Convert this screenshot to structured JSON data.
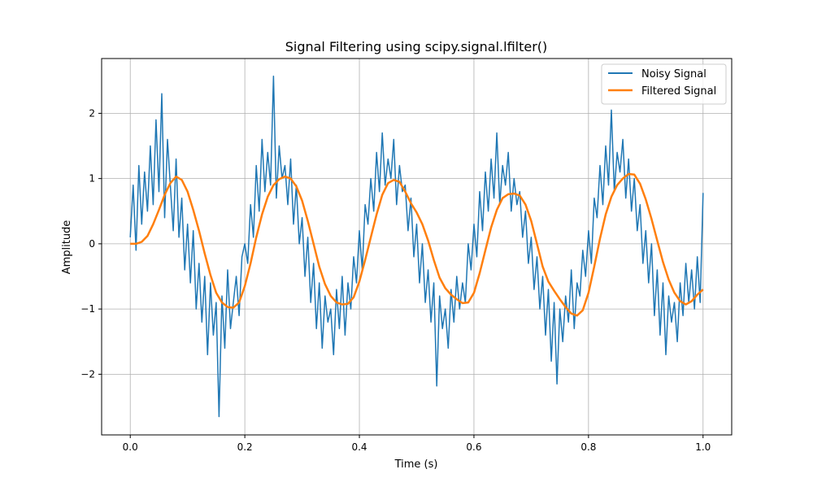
{
  "chart_data": {
    "type": "line",
    "title": "Signal Filtering using scipy.signal.lfilter()",
    "xlabel": "Time (s)",
    "ylabel": "Amplitude",
    "xlim": [
      -0.05,
      1.05
    ],
    "ylim": [
      -2.93,
      2.84
    ],
    "xticks": [
      0.0,
      0.2,
      0.4,
      0.6,
      0.8,
      1.0
    ],
    "xtick_labels": [
      "0.0",
      "0.2",
      "0.4",
      "0.6",
      "0.8",
      "1.0"
    ],
    "yticks": [
      -2,
      -1,
      0,
      1,
      2
    ],
    "ytick_labels": [
      "−2",
      "−1",
      "0",
      "1",
      "2"
    ],
    "grid": true,
    "legend_position": "top-right",
    "series": [
      {
        "name": "Noisy Signal",
        "color": "#1f77b4",
        "x_start": 0.0,
        "x_step": 0.005,
        "values": [
          0.1,
          0.9,
          -0.1,
          1.2,
          0.3,
          1.1,
          0.5,
          1.5,
          0.6,
          1.9,
          0.8,
          2.3,
          0.4,
          1.6,
          0.9,
          0.2,
          1.3,
          0.1,
          0.7,
          -0.4,
          0.3,
          -0.6,
          0.2,
          -1.0,
          -0.3,
          -1.2,
          -0.5,
          -1.7,
          -0.6,
          -1.4,
          -0.9,
          -2.65,
          -0.8,
          -1.6,
          -0.4,
          -1.3,
          -0.9,
          -0.5,
          -1.1,
          -0.2,
          0.0,
          -0.3,
          0.6,
          0.1,
          1.2,
          0.5,
          1.6,
          0.8,
          1.4,
          0.9,
          2.57,
          0.7,
          1.5,
          1.0,
          1.2,
          0.6,
          1.3,
          0.3,
          0.9,
          0.0,
          0.4,
          -0.5,
          0.1,
          -0.9,
          -0.3,
          -1.3,
          -0.6,
          -1.6,
          -0.8,
          -1.2,
          -1.0,
          -1.7,
          -0.7,
          -1.3,
          -0.5,
          -1.4,
          -0.6,
          -1.0,
          -0.2,
          -0.6,
          0.2,
          -0.4,
          0.6,
          0.3,
          1.0,
          0.5,
          1.4,
          0.8,
          1.7,
          0.9,
          1.3,
          1.0,
          1.6,
          0.6,
          1.2,
          0.8,
          0.9,
          0.2,
          0.7,
          -0.2,
          0.3,
          -0.6,
          0.0,
          -0.9,
          -0.4,
          -1.2,
          -0.6,
          -2.18,
          -0.8,
          -1.3,
          -1.0,
          -1.6,
          -0.7,
          -1.2,
          -0.5,
          -1.0,
          -0.6,
          -0.9,
          0.0,
          -0.4,
          0.3,
          -0.2,
          0.8,
          0.2,
          1.1,
          0.5,
          1.3,
          0.7,
          1.7,
          0.6,
          1.2,
          0.9,
          1.4,
          0.5,
          1.0,
          0.6,
          0.8,
          0.1,
          0.5,
          -0.3,
          0.1,
          -0.7,
          -0.2,
          -1.0,
          -0.5,
          -1.4,
          -0.7,
          -1.8,
          -0.9,
          -2.15,
          -1.0,
          -1.5,
          -0.8,
          -1.2,
          -0.4,
          -1.3,
          -0.6,
          -0.8,
          -0.1,
          -0.5,
          0.2,
          -0.3,
          0.7,
          0.4,
          1.2,
          0.6,
          1.5,
          0.9,
          2.05,
          0.8,
          1.4,
          1.1,
          1.6,
          0.7,
          1.3,
          0.5,
          1.0,
          0.2,
          0.6,
          -0.3,
          0.2,
          -0.6,
          0.0,
          -1.1,
          -0.4,
          -1.4,
          -0.6,
          -1.7,
          -0.8,
          -1.2,
          -0.9,
          -1.5,
          -0.6,
          -1.1,
          -0.3,
          -0.9,
          -0.4,
          -1.0,
          -0.2,
          -0.9,
          0.78
        ]
      },
      {
        "name": "Filtered Signal",
        "color": "#ff7f0e",
        "x_start": 0.0,
        "x_step": 0.01,
        "values": [
          0,
          0.0,
          0.03,
          0.12,
          0.3,
          0.52,
          0.75,
          0.93,
          1.03,
          0.98,
          0.8,
          0.52,
          0.2,
          -0.15,
          -0.48,
          -0.75,
          -0.9,
          -0.97,
          -0.98,
          -0.9,
          -0.65,
          -0.3,
          0.1,
          0.45,
          0.72,
          0.9,
          0.99,
          1.03,
          1.0,
          0.88,
          0.66,
          0.35,
          0.0,
          -0.35,
          -0.62,
          -0.8,
          -0.9,
          -0.93,
          -0.92,
          -0.82,
          -0.58,
          -0.25,
          0.1,
          0.45,
          0.75,
          0.93,
          0.98,
          0.95,
          0.8,
          0.62,
          0.48,
          0.3,
          0.05,
          -0.25,
          -0.52,
          -0.68,
          -0.78,
          -0.85,
          -0.91,
          -0.9,
          -0.75,
          -0.45,
          -0.1,
          0.25,
          0.52,
          0.7,
          0.76,
          0.77,
          0.74,
          0.6,
          0.35,
          0.0,
          -0.35,
          -0.58,
          -0.72,
          -0.85,
          -0.97,
          -1.07,
          -1.1,
          -1.02,
          -0.75,
          -0.35,
          0.08,
          0.45,
          0.72,
          0.9,
          1.0,
          1.07,
          1.06,
          0.92,
          0.68,
          0.38,
          0.05,
          -0.28,
          -0.55,
          -0.75,
          -0.88,
          -0.93,
          -0.88,
          -0.78,
          -0.7
        ]
      }
    ]
  }
}
